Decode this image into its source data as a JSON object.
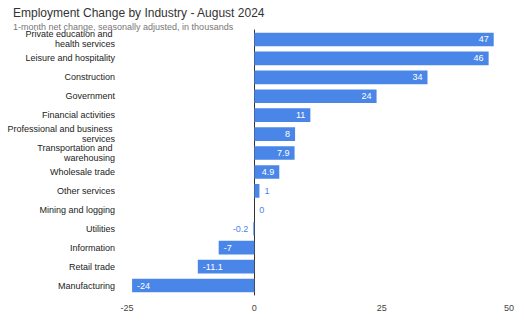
{
  "chart_data": {
    "type": "bar",
    "orientation": "horizontal",
    "title": "Employment Change by Industry - August 2024",
    "subtitle": "1-month net change, seasonally adjusted, in thousands",
    "categories": [
      "Private education and health services",
      "Leisure and hospitality",
      "Construction",
      "Government",
      "Financial activities",
      "Professional and business services",
      "Transportation and warehousing",
      "Wholesale trade",
      "Other services",
      "Mining and logging",
      "Utilities",
      "Information",
      "Retail trade",
      "Manufacturing"
    ],
    "values": [
      47,
      46,
      34,
      24,
      11,
      8,
      7.9,
      4.9,
      1,
      0,
      -0.2,
      -7,
      -11.1,
      -24
    ],
    "color": "#4a86e8",
    "xlim": [
      -25,
      50
    ],
    "xticks": [
      -25,
      0,
      25,
      50
    ],
    "grid": false,
    "data_labels": true
  }
}
